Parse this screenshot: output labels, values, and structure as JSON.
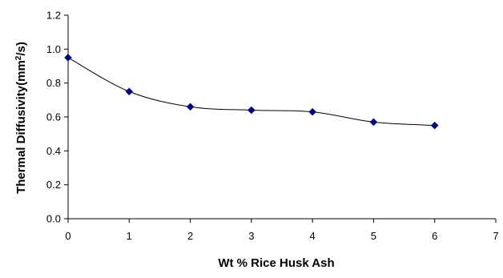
{
  "chart_data": {
    "type": "line",
    "title": "",
    "xlabel": "Wt % Rice Husk Ash",
    "ylabel": {
      "prefix": "Thermal Diffusivity(mm",
      "superscript": "2",
      "suffix": "/s)"
    },
    "xlim": [
      0,
      7
    ],
    "ylim": [
      0.0,
      1.2
    ],
    "x_ticks": [
      "0",
      "1",
      "2",
      "3",
      "4",
      "5",
      "6",
      "7"
    ],
    "y_ticks": [
      "0.0",
      "0.2",
      "0.4",
      "0.6",
      "0.8",
      "1.0",
      "1.2"
    ],
    "grid": false,
    "legend": "none",
    "series": [
      {
        "x": [
          0,
          1,
          2,
          3,
          4,
          5,
          6
        ],
        "y": [
          0.95,
          0.75,
          0.66,
          0.64,
          0.63,
          0.57,
          0.55
        ],
        "line_style": "smooth",
        "line_color": "#000000",
        "marker": "diamond",
        "marker_color": "#000080"
      }
    ]
  }
}
